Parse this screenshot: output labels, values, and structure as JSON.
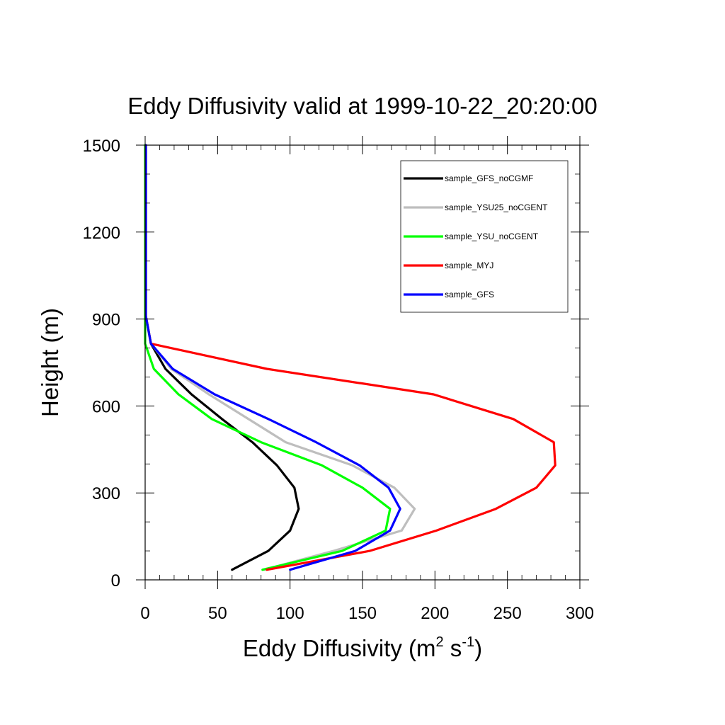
{
  "chart_data": {
    "type": "line",
    "title": "Eddy Diffusivity valid at 1999-10-22_20:20:00",
    "xlabel": {
      "base": "Eddy Diffusivity (m",
      "sup1": "2",
      "mid": " s",
      "sup2": "-1",
      "end": ")"
    },
    "ylabel": "Height (m)",
    "xlim": [
      0,
      300
    ],
    "ylim": [
      0,
      1500
    ],
    "xticks": [
      0,
      50,
      100,
      150,
      200,
      250,
      300
    ],
    "xtick_labels": [
      "0",
      "50",
      "100",
      "150",
      "200",
      "250",
      "300"
    ],
    "yticks": [
      0,
      300,
      600,
      900,
      1200,
      1500
    ],
    "ytick_labels": [
      "0",
      "300",
      "600",
      "900",
      "1200",
      "1500"
    ],
    "grid": false,
    "legend_position": "top-right",
    "series": [
      {
        "name": "sample_GFS_noCGMF",
        "color": "#000000",
        "x": [
          60,
          85,
          100,
          106,
          103,
          91,
          74,
          53,
          32,
          14,
          4,
          0.5,
          0.5,
          0.5
        ],
        "y": [
          35,
          100,
          170,
          245,
          318,
          395,
          475,
          555,
          640,
          728,
          815,
          910,
          1200,
          1500
        ]
      },
      {
        "name": "sample_YSU25_noCGENT",
        "color": "#bebebe",
        "x": [
          82,
          130,
          177,
          186,
          172,
          143,
          97,
          44,
          18,
          4,
          0.5,
          0.5,
          0.5
        ],
        "y": [
          35,
          100,
          170,
          245,
          318,
          395,
          475,
          640,
          728,
          815,
          910,
          1200,
          1500
        ]
      },
      {
        "name": "sample_YSU_noCGENT",
        "color": "#00ff00",
        "x": [
          81,
          136,
          166,
          169,
          150,
          122,
          80,
          46,
          23,
          6,
          0,
          0,
          0
        ],
        "y": [
          35,
          100,
          170,
          245,
          318,
          395,
          475,
          555,
          640,
          728,
          815,
          910,
          1500
        ]
      },
      {
        "name": "sample_MYJ",
        "color": "#ff0000",
        "x": [
          84,
          155,
          201,
          242,
          270,
          283,
          282,
          254,
          199,
          84,
          4,
          0.5,
          0.5
        ],
        "y": [
          35,
          100,
          170,
          245,
          318,
          395,
          475,
          555,
          640,
          728,
          815,
          910,
          1500
        ]
      },
      {
        "name": "sample_GFS",
        "color": "#0000ff",
        "x": [
          100,
          145,
          169,
          176,
          168,
          148,
          118,
          85,
          48,
          19,
          4,
          0.5,
          0.5,
          0.5
        ],
        "y": [
          35,
          100,
          170,
          245,
          318,
          395,
          475,
          555,
          640,
          728,
          815,
          910,
          1200,
          1500
        ]
      }
    ]
  }
}
